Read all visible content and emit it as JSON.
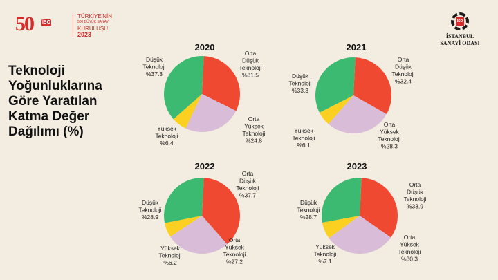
{
  "branding": {
    "anniversary_number": "50",
    "anniversary_badge": "İSO",
    "anniversary_line1": "TÜRKİYE'NİN",
    "anniversary_line2": "500 BÜYÜK SANAYİ",
    "anniversary_line3": "KURULUŞU",
    "anniversary_year": "2023",
    "org_badge": "İSO",
    "org_line1": "İSTANBUL",
    "org_line2": "SANAYİ ODASI"
  },
  "headline": [
    "Teknoloji",
    "Yoğunluklarına",
    "Göre Yaratılan",
    "Katma Değer",
    "Dağılımı (%)"
  ],
  "colors": {
    "low_tech": "#3dba72",
    "mid_low_tech": "#ef4a31",
    "mid_high_tech": "#d8bcd8",
    "high_tech": "#fcd020"
  },
  "chart_data": [
    {
      "type": "pie",
      "title": "2020",
      "slices": [
        {
          "label": [
            "Orta",
            "Düşük",
            "Teknoloji",
            "%31.5"
          ],
          "value": 31.5
        },
        {
          "label": [
            "Orta",
            "Yüksek",
            "Teknoloji",
            "%24.8"
          ],
          "value": 24.8
        },
        {
          "label": [
            "Yüksek",
            "Teknoloji",
            "%6.4"
          ],
          "value": 6.4
        },
        {
          "label": [
            "Düşük",
            "Teknoloji",
            "%37.3"
          ],
          "value": 37.3
        }
      ]
    },
    {
      "type": "pie",
      "title": "2021",
      "slices": [
        {
          "label": [
            "Orta",
            "Düşük",
            "Teknoloji",
            "%32.4"
          ],
          "value": 32.4
        },
        {
          "label": [
            "Orta",
            "Yüksek",
            "Teknoloji",
            "%28.3"
          ],
          "value": 28.3
        },
        {
          "label": [
            "Yüksek",
            "Teknoloji",
            "%6.1"
          ],
          "value": 6.1
        },
        {
          "label": [
            "Düşük",
            "Teknoloji",
            "%33.3"
          ],
          "value": 33.3
        }
      ]
    },
    {
      "type": "pie",
      "title": "2022",
      "slices": [
        {
          "label": [
            "Orta",
            "Düşük",
            "Teknoloji",
            "%37.7"
          ],
          "value": 37.7
        },
        {
          "label": [
            "Orta",
            "Yüksek",
            "Teknoloji",
            "%27.2"
          ],
          "value": 27.2
        },
        {
          "label": [
            "Yüksek",
            "Teknoloji",
            "%6.2"
          ],
          "value": 6.2
        },
        {
          "label": [
            "Düşük",
            "Teknoloji",
            "%28.9"
          ],
          "value": 28.9
        }
      ]
    },
    {
      "type": "pie",
      "title": "2023",
      "slices": [
        {
          "label": [
            "Orta",
            "Düşük",
            "Teknoloji",
            "%33.9"
          ],
          "value": 33.9
        },
        {
          "label": [
            "Orta",
            "Yüksek",
            "Teknoloji",
            "%30.3"
          ],
          "value": 30.3
        },
        {
          "label": [
            "Yüksek",
            "Teknoloji",
            "%7.1"
          ],
          "value": 7.1
        },
        {
          "label": [
            "Düşük",
            "Teknoloji",
            "%28.7"
          ],
          "value": 28.7
        }
      ]
    }
  ]
}
